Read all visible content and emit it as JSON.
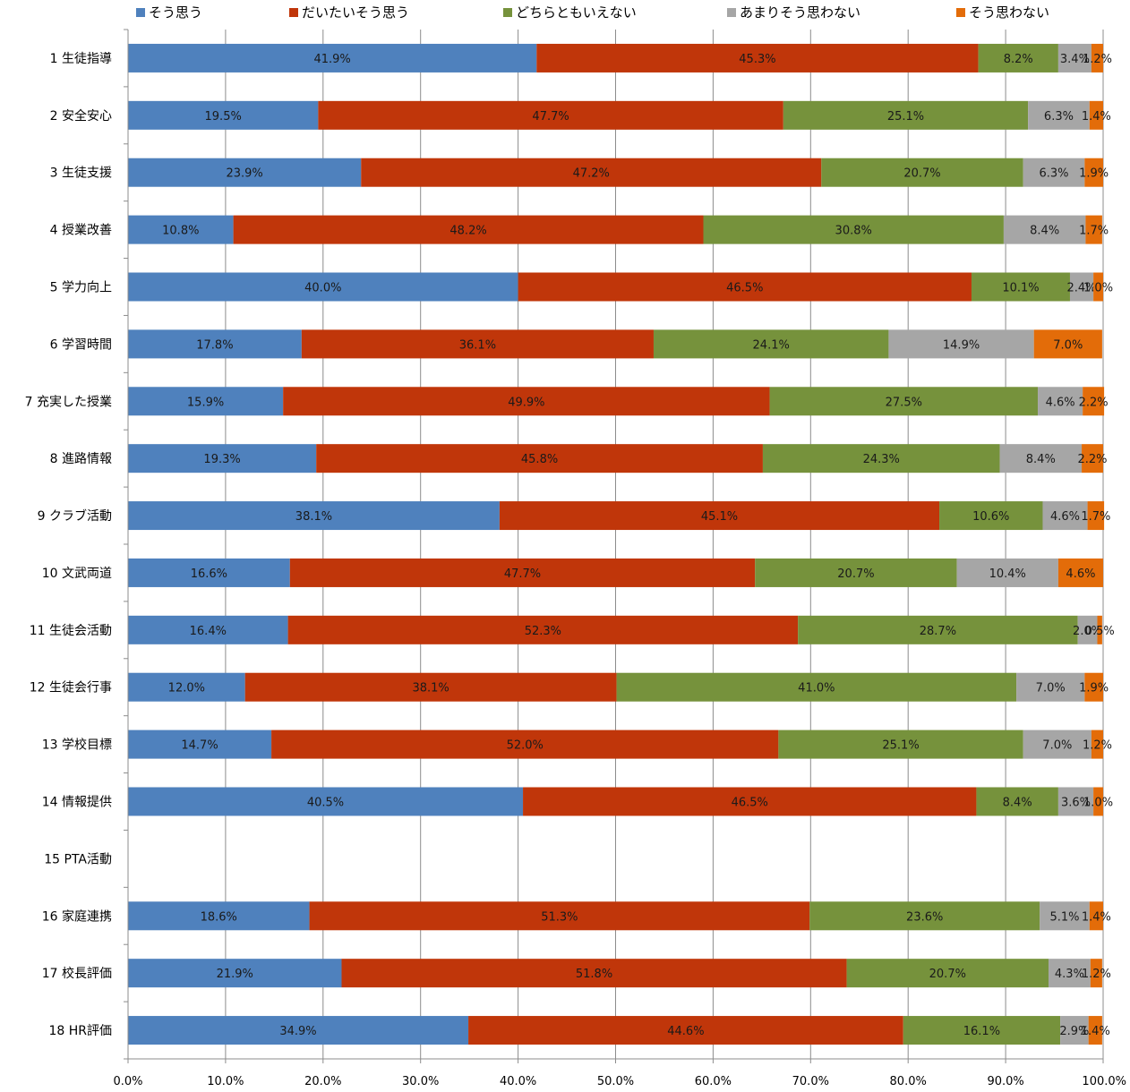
{
  "chart_data": {
    "type": "bar",
    "orientation": "horizontal",
    "stacked": true,
    "categories": [
      "1 生徒指導",
      "2 安全安心",
      "3 生徒支援",
      "4 授業改善",
      "5 学力向上",
      "6 学習時間",
      "7 充実した授業",
      "8 進路情報",
      "9 クラブ活動",
      "10 文武両道",
      "11 生徒会活動",
      "12 生徒会行事",
      "13 学校目標",
      "14 情報提供",
      "15 PTA活動",
      "16 家庭連携",
      "17 校長評価",
      "18 HR評価"
    ],
    "series": [
      {
        "name": "そう思う",
        "color": "#4f81bd",
        "values": [
          41.9,
          19.5,
          23.9,
          10.8,
          40.0,
          17.8,
          15.9,
          19.3,
          38.1,
          16.6,
          16.4,
          12.0,
          14.7,
          40.5,
          null,
          18.6,
          21.9,
          34.9
        ]
      },
      {
        "name": "だいたいそう思う",
        "color": "#c0360a",
        "values": [
          45.3,
          47.7,
          47.2,
          48.2,
          46.5,
          36.1,
          49.9,
          45.8,
          45.1,
          47.7,
          52.3,
          38.1,
          52.0,
          46.5,
          null,
          51.3,
          51.8,
          44.6
        ]
      },
      {
        "name": "どちらともいえない",
        "color": "#76923c",
        "values": [
          8.2,
          25.1,
          20.7,
          30.8,
          10.1,
          24.1,
          27.5,
          24.3,
          10.6,
          20.7,
          28.7,
          41.0,
          25.1,
          8.4,
          null,
          23.6,
          20.7,
          16.1
        ]
      },
      {
        "name": "あまりそう思わない",
        "color": "#a6a6a6",
        "values": [
          3.4,
          6.3,
          6.3,
          8.4,
          2.4,
          14.9,
          4.6,
          8.4,
          4.6,
          10.4,
          2.0,
          7.0,
          7.0,
          3.6,
          null,
          5.1,
          4.3,
          2.9
        ]
      },
      {
        "name": "そう思わない",
        "color": "#e36c09",
        "values": [
          1.2,
          1.4,
          1.9,
          1.7,
          1.0,
          7.0,
          2.2,
          2.2,
          1.7,
          4.6,
          0.5,
          1.9,
          1.2,
          1.0,
          null,
          1.4,
          1.2,
          1.4
        ]
      }
    ],
    "xlim": [
      0,
      100
    ],
    "x_ticks": [
      "0.0%",
      "10.0%",
      "20.0%",
      "30.0%",
      "40.0%",
      "50.0%",
      "60.0%",
      "70.0%",
      "80.0%",
      "90.0%",
      "100.0%"
    ],
    "data_labels": true,
    "grid": "vertical",
    "legend_position": "top",
    "title": "",
    "xlabel": "",
    "ylabel": ""
  }
}
